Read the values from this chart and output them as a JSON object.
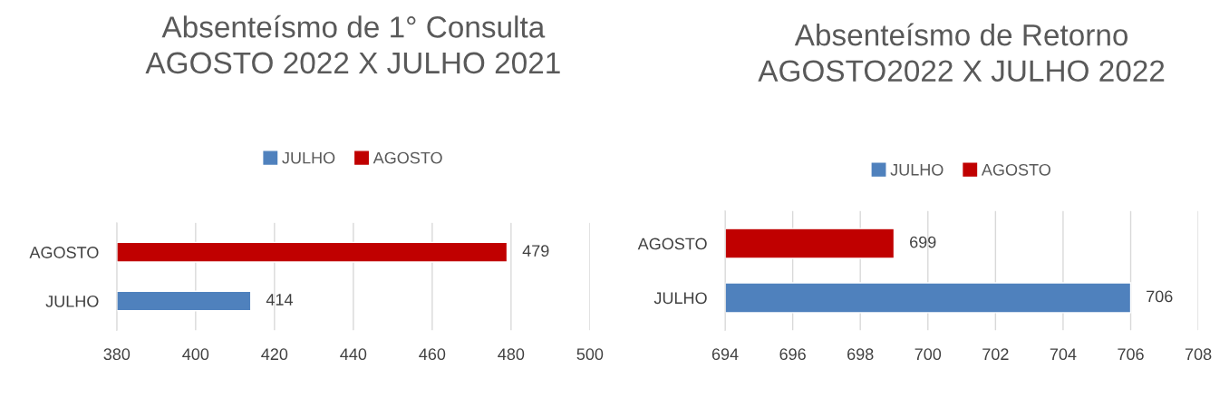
{
  "chart_data": [
    {
      "type": "bar",
      "orientation": "horizontal",
      "title": "Absenteísmo de 1° Consulta\nAGOSTO 2022 X JULHO 2021",
      "categories": [
        "AGOSTO",
        "JULHO"
      ],
      "series": [
        {
          "name": "JULHO",
          "color": "#4f81bd",
          "values": [
            null,
            414
          ]
        },
        {
          "name": "AGOSTO",
          "color": "#c00000",
          "values": [
            479,
            null
          ]
        }
      ],
      "xlim": [
        380,
        500
      ],
      "xticks": [
        380,
        400,
        420,
        440,
        460,
        480,
        500
      ],
      "grid": "x",
      "legend": "top",
      "data_labels": true
    },
    {
      "type": "bar",
      "orientation": "horizontal",
      "title": "Absenteísmo de Retorno\nAGOSTO2022 X JULHO 2022",
      "categories": [
        "AGOSTO",
        "JULHO"
      ],
      "series": [
        {
          "name": "JULHO",
          "color": "#4f81bd",
          "values": [
            null,
            706
          ]
        },
        {
          "name": "AGOSTO",
          "color": "#c00000",
          "values": [
            699,
            null
          ]
        }
      ],
      "xlim": [
        694,
        708
      ],
      "xticks": [
        694,
        696,
        698,
        700,
        702,
        704,
        706,
        708
      ],
      "grid": "x",
      "legend": "top",
      "data_labels": true
    }
  ]
}
